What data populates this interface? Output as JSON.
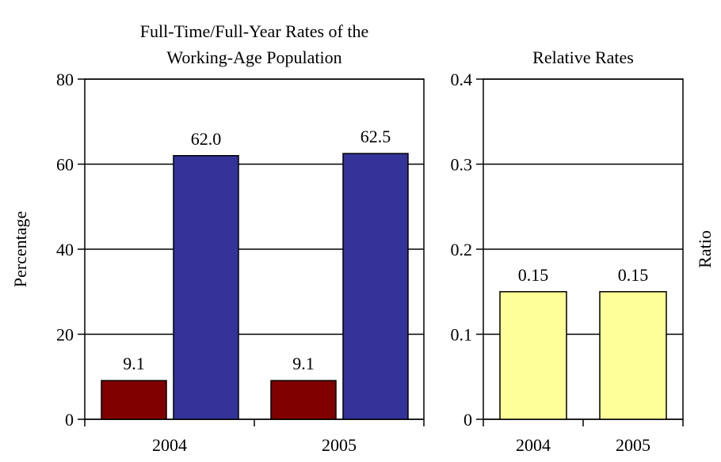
{
  "chart_data": [
    {
      "type": "bar",
      "title": [
        "Full-Time/Full-Year Rates of the",
        "Working-Age Population"
      ],
      "ylabel": "Percentage",
      "categories": [
        "2004",
        "2005"
      ],
      "series": [
        {
          "color": "#800000",
          "values": [
            9.1,
            9.1
          ]
        },
        {
          "color": "#333399",
          "values": [
            62.0,
            62.5
          ],
          "value_labels": [
            "62.0",
            "62.5"
          ]
        }
      ],
      "ylim": [
        0,
        80
      ],
      "yticks": [
        0,
        20,
        40,
        60,
        80
      ],
      "grid": true
    },
    {
      "type": "bar",
      "title": [
        "Relative Rates"
      ],
      "ylabel": "Ratio",
      "categories": [
        "2004",
        "2005"
      ],
      "series": [
        {
          "color": "#ffff99",
          "values": [
            0.15,
            0.15
          ]
        }
      ],
      "ylim": [
        0,
        0.4
      ],
      "yticks": [
        0,
        0.1,
        0.2,
        0.3,
        0.4
      ],
      "grid": true
    }
  ]
}
